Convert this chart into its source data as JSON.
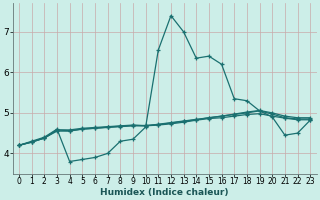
{
  "background_color": "#cceee8",
  "grid_color": "#bbcccc",
  "line_color": "#1a7070",
  "xlabel": "Humidex (Indice chaleur)",
  "xlim": [
    -0.5,
    23.5
  ],
  "ylim": [
    3.5,
    7.7
  ],
  "yticks": [
    4,
    5,
    6,
    7
  ],
  "xticks": [
    0,
    1,
    2,
    3,
    4,
    5,
    6,
    7,
    8,
    9,
    10,
    11,
    12,
    13,
    14,
    15,
    16,
    17,
    18,
    19,
    20,
    21,
    22,
    23
  ],
  "series": [
    {
      "x": [
        0,
        1,
        2,
        3,
        4,
        5,
        6,
        7,
        8,
        9,
        10,
        11,
        12,
        13,
        14,
        15,
        16,
        17,
        18,
        19,
        20,
        21,
        22,
        23
      ],
      "y": [
        4.2,
        4.3,
        4.4,
        4.6,
        3.8,
        3.85,
        3.9,
        4.0,
        4.3,
        4.35,
        4.65,
        6.55,
        7.4,
        7.0,
        6.35,
        6.4,
        6.2,
        5.35,
        5.3,
        5.05,
        4.9,
        4.45,
        4.5,
        4.82
      ]
    },
    {
      "x": [
        0,
        1,
        2,
        3,
        4,
        5,
        6,
        7,
        8,
        9,
        10,
        11,
        12,
        13,
        14,
        15,
        16,
        17,
        18,
        19,
        20,
        21,
        22,
        23
      ],
      "y": [
        4.2,
        4.28,
        4.38,
        4.58,
        4.58,
        4.62,
        4.64,
        4.66,
        4.68,
        4.7,
        4.68,
        4.72,
        4.76,
        4.8,
        4.84,
        4.88,
        4.92,
        4.96,
        5.0,
        5.05,
        4.97,
        4.88,
        4.85,
        4.85
      ]
    },
    {
      "x": [
        0,
        1,
        2,
        3,
        4,
        5,
        6,
        7,
        8,
        9,
        10,
        11,
        12,
        13,
        14,
        15,
        16,
        17,
        18,
        19,
        20,
        21,
        22,
        23
      ],
      "y": [
        4.2,
        4.28,
        4.38,
        4.55,
        4.55,
        4.6,
        4.62,
        4.64,
        4.66,
        4.68,
        4.68,
        4.7,
        4.73,
        4.77,
        4.82,
        4.86,
        4.88,
        4.92,
        4.96,
        4.98,
        4.92,
        4.87,
        4.83,
        4.83
      ]
    },
    {
      "x": [
        0,
        1,
        2,
        3,
        4,
        5,
        6,
        7,
        8,
        9,
        10,
        11,
        12,
        13,
        14,
        15,
        16,
        17,
        18,
        19,
        20,
        21,
        22,
        23
      ],
      "y": [
        4.2,
        4.28,
        4.38,
        4.58,
        4.56,
        4.6,
        4.62,
        4.65,
        4.67,
        4.69,
        4.69,
        4.71,
        4.75,
        4.79,
        4.83,
        4.88,
        4.92,
        4.97,
        5.02,
        5.06,
        5.0,
        4.92,
        4.88,
        4.88
      ]
    }
  ]
}
